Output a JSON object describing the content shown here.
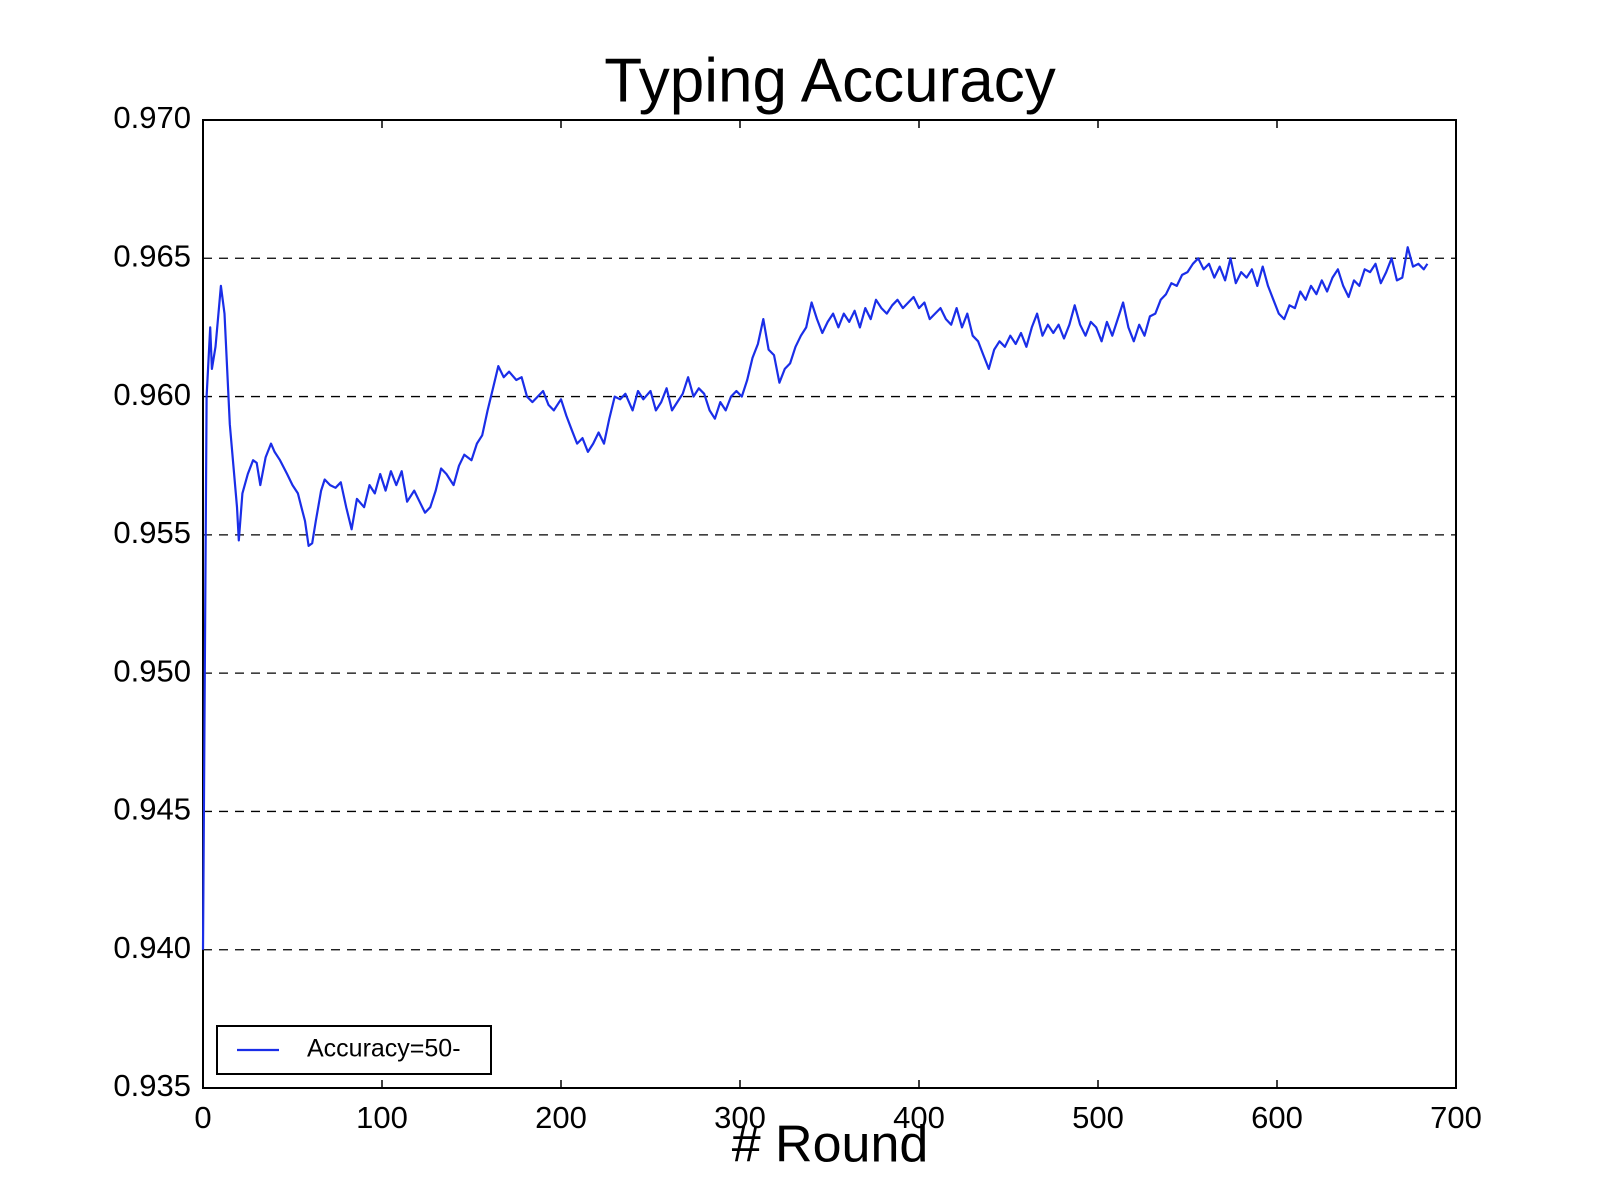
{
  "chart_data": {
    "type": "line",
    "title": "Typing Accuracy",
    "x_label": "# Round",
    "x": [
      0,
      2,
      4,
      5,
      7,
      10,
      12,
      15,
      17,
      19,
      20,
      22,
      25,
      28,
      30,
      32,
      35,
      38,
      40,
      43,
      47,
      50,
      53,
      55,
      57,
      59,
      61,
      63,
      66,
      68,
      71,
      74,
      77,
      80,
      83,
      86,
      90,
      93,
      96,
      99,
      102,
      105,
      108,
      111,
      114,
      118,
      121,
      124,
      127,
      130,
      133,
      136,
      140,
      143,
      146,
      150,
      153,
      156,
      159,
      162,
      165,
      168,
      171,
      175,
      178,
      181,
      184,
      187,
      190,
      193,
      196,
      200,
      203,
      206,
      209,
      212,
      215,
      218,
      221,
      224,
      227,
      230,
      233,
      236,
      240,
      243,
      246,
      250,
      253,
      256,
      259,
      262,
      265,
      268,
      271,
      274,
      277,
      280,
      283,
      286,
      289,
      292,
      295,
      298,
      301,
      304,
      307,
      310,
      313,
      316,
      319,
      322,
      325,
      328,
      331,
      334,
      337,
      340,
      343,
      346,
      349,
      352,
      355,
      358,
      361,
      364,
      367,
      370,
      373,
      376,
      379,
      382,
      385,
      388,
      391,
      394,
      397,
      400,
      403,
      406,
      409,
      412,
      415,
      418,
      421,
      424,
      427,
      430,
      433,
      436,
      439,
      442,
      445,
      448,
      451,
      454,
      457,
      460,
      463,
      466,
      469,
      472,
      475,
      478,
      481,
      484,
      487,
      490,
      493,
      496,
      499,
      502,
      505,
      508,
      511,
      514,
      517,
      520,
      523,
      526,
      529,
      532,
      535,
      538,
      541,
      544,
      547,
      550,
      553,
      556,
      559,
      562,
      565,
      568,
      571,
      574,
      577,
      580,
      583,
      586,
      589,
      592,
      595,
      598,
      601,
      604,
      607,
      610,
      613,
      616,
      619,
      622,
      625,
      628,
      631,
      634,
      637,
      640,
      643,
      646,
      649,
      652,
      655,
      658,
      661,
      664,
      667,
      670,
      673,
      676,
      679,
      682,
      684
    ],
    "series": [
      {
        "name": "Accuracy=50-",
        "color": "#1a2ee8",
        "values": [
          0.94,
          0.96,
          0.9625,
          0.961,
          0.9618,
          0.964,
          0.963,
          0.959,
          0.9575,
          0.956,
          0.9548,
          0.9565,
          0.9572,
          0.9577,
          0.9576,
          0.9568,
          0.9578,
          0.9583,
          0.958,
          0.9577,
          0.9572,
          0.9568,
          0.9565,
          0.956,
          0.9555,
          0.9546,
          0.9547,
          0.9555,
          0.9566,
          0.957,
          0.9568,
          0.9567,
          0.9569,
          0.956,
          0.9552,
          0.9563,
          0.956,
          0.9568,
          0.9565,
          0.9572,
          0.9566,
          0.9573,
          0.9568,
          0.9573,
          0.9562,
          0.9566,
          0.9562,
          0.9558,
          0.956,
          0.9566,
          0.9574,
          0.9572,
          0.9568,
          0.9575,
          0.9579,
          0.9577,
          0.9583,
          0.9586,
          0.9595,
          0.9603,
          0.9611,
          0.9607,
          0.9609,
          0.9606,
          0.9607,
          0.96,
          0.9598,
          0.96,
          0.9602,
          0.9597,
          0.9595,
          0.9599,
          0.9593,
          0.9588,
          0.9583,
          0.9585,
          0.958,
          0.9583,
          0.9587,
          0.9583,
          0.9592,
          0.96,
          0.9599,
          0.9601,
          0.9595,
          0.9602,
          0.9599,
          0.9602,
          0.9595,
          0.9598,
          0.9603,
          0.9595,
          0.9598,
          0.9601,
          0.9607,
          0.96,
          0.9603,
          0.9601,
          0.9595,
          0.9592,
          0.9598,
          0.9595,
          0.96,
          0.9602,
          0.96,
          0.9606,
          0.9614,
          0.9619,
          0.9628,
          0.9617,
          0.9615,
          0.9605,
          0.961,
          0.9612,
          0.9618,
          0.9622,
          0.9625,
          0.9634,
          0.9628,
          0.9623,
          0.9627,
          0.963,
          0.9625,
          0.963,
          0.9627,
          0.9631,
          0.9625,
          0.9632,
          0.9628,
          0.9635,
          0.9632,
          0.963,
          0.9633,
          0.9635,
          0.9632,
          0.9634,
          0.9636,
          0.9632,
          0.9634,
          0.9628,
          0.963,
          0.9632,
          0.9628,
          0.9626,
          0.9632,
          0.9625,
          0.963,
          0.9622,
          0.962,
          0.9615,
          0.961,
          0.9617,
          0.962,
          0.9618,
          0.9622,
          0.9619,
          0.9623,
          0.9618,
          0.9625,
          0.963,
          0.9622,
          0.9626,
          0.9623,
          0.9626,
          0.9621,
          0.9626,
          0.9633,
          0.9626,
          0.9622,
          0.9627,
          0.9625,
          0.962,
          0.9627,
          0.9622,
          0.9628,
          0.9634,
          0.9625,
          0.962,
          0.9626,
          0.9622,
          0.9629,
          0.963,
          0.9635,
          0.9637,
          0.9641,
          0.964,
          0.9644,
          0.9645,
          0.9648,
          0.965,
          0.9646,
          0.9648,
          0.9643,
          0.9647,
          0.9642,
          0.965,
          0.9641,
          0.9645,
          0.9643,
          0.9646,
          0.964,
          0.9647,
          0.964,
          0.9635,
          0.963,
          0.9628,
          0.9633,
          0.9632,
          0.9638,
          0.9635,
          0.964,
          0.9637,
          0.9642,
          0.9638,
          0.9643,
          0.9646,
          0.964,
          0.9636,
          0.9642,
          0.964,
          0.9646,
          0.9645,
          0.9648,
          0.9641,
          0.9645,
          0.965,
          0.9642,
          0.9643,
          0.9654,
          0.9647,
          0.9648,
          0.9646,
          0.9648
        ]
      }
    ],
    "xlim": [
      0,
      700
    ],
    "xticks": [
      0,
      100,
      200,
      300,
      400,
      500,
      600,
      700
    ],
    "ylim": [
      0.935,
      0.97
    ],
    "yticks": [
      0.935,
      {
        "value": 0.94,
        "label": "0.940"
      },
      0.945,
      {
        "value": 0.95,
        "label": "0.950"
      },
      0.955,
      {
        "value": 0.96,
        "label": "0.960"
      },
      0.965,
      {
        "value": 0.97,
        "label": "0.970"
      }
    ],
    "grid": true,
    "legend": "lower left"
  }
}
